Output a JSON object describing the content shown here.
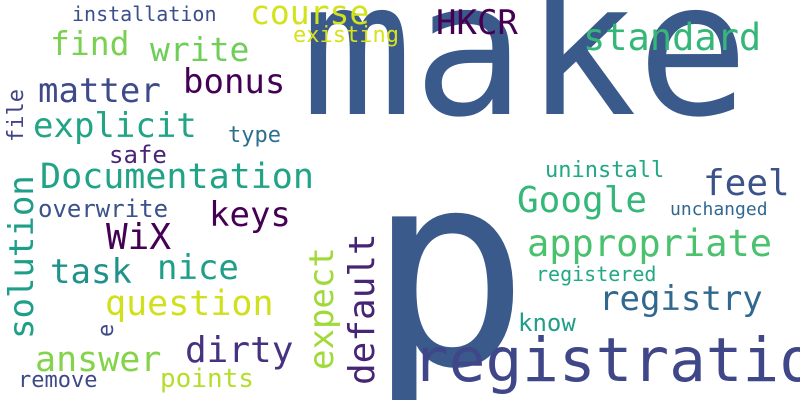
{
  "words": [
    {
      "text": "make",
      "color": "#3b5a8c"
    },
    {
      "text": "p",
      "color": "#3b5a8c"
    },
    {
      "text": "registration",
      "color": "#3f4788"
    },
    {
      "text": "course",
      "color": "#d2e21b"
    },
    {
      "text": "HKCR",
      "color": "#440154"
    },
    {
      "text": "standard",
      "color": "#35b779"
    },
    {
      "text": "installation",
      "color": "#3b4f8a"
    },
    {
      "text": "find",
      "color": "#7ad151"
    },
    {
      "text": "write",
      "color": "#6ece58"
    },
    {
      "text": "existing",
      "color": "#d8e219"
    },
    {
      "text": "matter",
      "color": "#3e4a89"
    },
    {
      "text": "bonus",
      "color": "#440154"
    },
    {
      "text": "explicit",
      "color": "#21a585"
    },
    {
      "text": "type",
      "color": "#2d708e"
    },
    {
      "text": "safe",
      "color": "#482576"
    },
    {
      "text": "Documentation",
      "color": "#20a386"
    },
    {
      "text": "uninstall",
      "color": "#22a884"
    },
    {
      "text": "feel",
      "color": "#3b528b"
    },
    {
      "text": "Google",
      "color": "#35b779"
    },
    {
      "text": "unchanged",
      "color": "#31688e"
    },
    {
      "text": "overwrite",
      "color": "#3b528b"
    },
    {
      "text": "keys",
      "color": "#440154"
    },
    {
      "text": "WiX",
      "color": "#440154"
    },
    {
      "text": "appropriate",
      "color": "#4ac16d"
    },
    {
      "text": "task",
      "color": "#21918c"
    },
    {
      "text": "nice",
      "color": "#1f9e89"
    },
    {
      "text": "registered",
      "color": "#22a884"
    },
    {
      "text": "registry",
      "color": "#31688e"
    },
    {
      "text": "question",
      "color": "#d0e11c"
    },
    {
      "text": "know",
      "color": "#1f9e89"
    },
    {
      "text": "dirty",
      "color": "#46327e"
    },
    {
      "text": "answer",
      "color": "#84d44b"
    },
    {
      "text": "remove",
      "color": "#3e4989"
    },
    {
      "text": "points",
      "color": "#b5de2b"
    },
    {
      "text": "file",
      "color": "#414487"
    },
    {
      "text": "solution",
      "color": "#1f9e89"
    },
    {
      "text": "e",
      "color": "#3e4989"
    },
    {
      "text": "expect",
      "color": "#a0da39"
    },
    {
      "text": "default",
      "color": "#482475"
    }
  ]
}
